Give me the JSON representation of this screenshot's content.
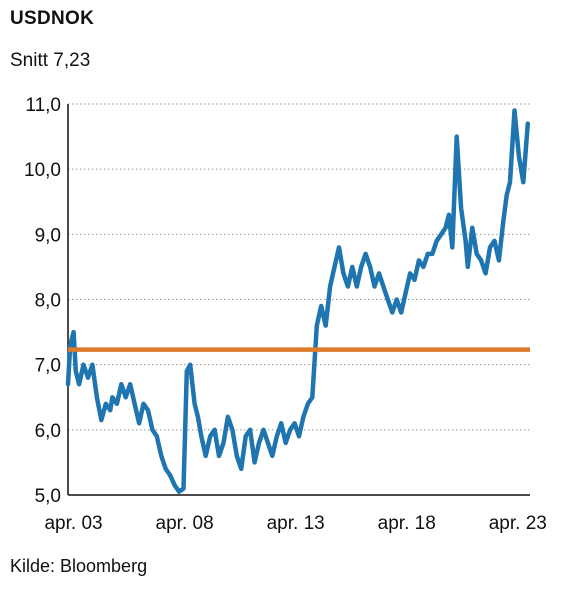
{
  "header": {
    "title": "USDNOK",
    "subtitle": "Snitt 7,23"
  },
  "footer": {
    "source": "Kilde: Bloomberg"
  },
  "colors": {
    "series": "#1f75b0",
    "average": "#de7a29",
    "axis": "#111111",
    "grid": "#999999"
  },
  "chart_data": {
    "type": "line",
    "title": "USDNOK",
    "subtitle": "Snitt 7,23",
    "xlabel": "",
    "ylabel": "",
    "ylim": [
      5.0,
      11.0
    ],
    "yticks": [
      5.0,
      6.0,
      7.0,
      8.0,
      9.0,
      10.0,
      11.0
    ],
    "ytick_labels": [
      "5,0",
      "6,0",
      "7,0",
      "8,0",
      "9,0",
      "10,0",
      "11,0"
    ],
    "xlim": [
      2003.0,
      2023.8
    ],
    "xticks": [
      2003.25,
      2008.25,
      2013.25,
      2018.25,
      2023.25
    ],
    "xtick_labels": [
      "apr. 03",
      "apr. 08",
      "apr. 13",
      "apr. 18",
      "apr. 23"
    ],
    "grid": "horizontal dotted",
    "series": [
      {
        "values_x": [
          2003.0,
          2003.1,
          2003.25,
          2003.35,
          2003.5,
          2003.7,
          2003.9,
          2004.1,
          2004.3,
          2004.5,
          2004.7,
          2004.9,
          2005.0,
          2005.2,
          2005.4,
          2005.6,
          2005.8,
          2006.0,
          2006.2,
          2006.4,
          2006.6,
          2006.8,
          2007.0,
          2007.2,
          2007.4,
          2007.6,
          2007.8,
          2008.0,
          2008.2,
          2008.35,
          2008.5,
          2008.6,
          2008.7,
          2008.85,
          2009.0,
          2009.2,
          2009.4,
          2009.6,
          2009.8,
          2010.0,
          2010.2,
          2010.4,
          2010.6,
          2010.8,
          2011.0,
          2011.2,
          2011.4,
          2011.6,
          2011.8,
          2012.0,
          2012.2,
          2012.4,
          2012.6,
          2012.8,
          2013.0,
          2013.2,
          2013.4,
          2013.6,
          2013.8,
          2014.0,
          2014.2,
          2014.4,
          2014.6,
          2014.8,
          2015.0,
          2015.2,
          2015.4,
          2015.6,
          2015.8,
          2016.0,
          2016.2,
          2016.4,
          2016.6,
          2016.8,
          2017.0,
          2017.2,
          2017.4,
          2017.6,
          2017.8,
          2018.0,
          2018.2,
          2018.4,
          2018.6,
          2018.8,
          2019.0,
          2019.2,
          2019.4,
          2019.6,
          2019.8,
          2020.0,
          2020.15,
          2020.3,
          2020.5,
          2020.7,
          2020.9,
          2021.0,
          2021.2,
          2021.4,
          2021.6,
          2021.8,
          2022.0,
          2022.2,
          2022.4,
          2022.6,
          2022.75,
          2022.9,
          2023.1,
          2023.3,
          2023.5,
          2023.7
        ],
        "values_y": [
          6.7,
          7.3,
          7.5,
          6.9,
          6.7,
          7.0,
          6.8,
          7.0,
          6.5,
          6.15,
          6.4,
          6.3,
          6.5,
          6.4,
          6.7,
          6.5,
          6.7,
          6.4,
          6.1,
          6.4,
          6.3,
          6.0,
          5.9,
          5.6,
          5.4,
          5.3,
          5.15,
          5.05,
          5.1,
          6.9,
          7.0,
          6.7,
          6.4,
          6.2,
          5.9,
          5.6,
          5.9,
          6.0,
          5.6,
          5.8,
          6.2,
          6.0,
          5.6,
          5.4,
          5.9,
          6.0,
          5.5,
          5.8,
          6.0,
          5.8,
          5.6,
          5.9,
          6.1,
          5.8,
          6.0,
          6.1,
          5.9,
          6.2,
          6.4,
          6.5,
          7.6,
          7.9,
          7.6,
          8.2,
          8.5,
          8.8,
          8.4,
          8.2,
          8.5,
          8.2,
          8.5,
          8.7,
          8.5,
          8.2,
          8.4,
          8.2,
          8.0,
          7.8,
          8.0,
          7.8,
          8.1,
          8.4,
          8.3,
          8.6,
          8.5,
          8.7,
          8.7,
          8.9,
          9.0,
          9.1,
          9.3,
          8.8,
          10.5,
          9.4,
          8.9,
          8.5,
          9.1,
          8.7,
          8.6,
          8.4,
          8.8,
          8.9,
          8.6,
          9.2,
          9.6,
          9.8,
          10.9,
          10.2,
          9.8,
          10.7
        ]
      }
    ],
    "average": 7.23
  }
}
